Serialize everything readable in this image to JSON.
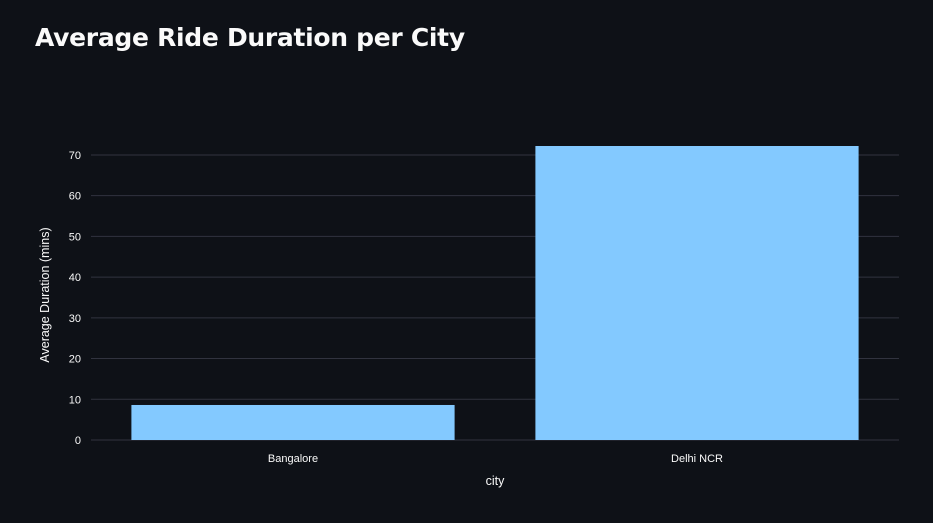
{
  "page": {
    "title": "Average Ride Duration per City"
  },
  "colors": {
    "background": "#0e1117",
    "bar": "#83c9ff",
    "grid": "#31333f",
    "text": "#fafafa"
  },
  "chart_data": {
    "type": "bar",
    "title": "Average Ride Duration per City",
    "categories": [
      "Bangalore",
      "Delhi NCR"
    ],
    "values": [
      8.6,
      72.2
    ],
    "xlabel": "city",
    "ylabel": "Average Duration (mins)",
    "ylim": [
      0,
      72.2
    ],
    "yticks": [
      0,
      10,
      20,
      30,
      40,
      50,
      60,
      70
    ],
    "grid": true,
    "legend": "none"
  }
}
